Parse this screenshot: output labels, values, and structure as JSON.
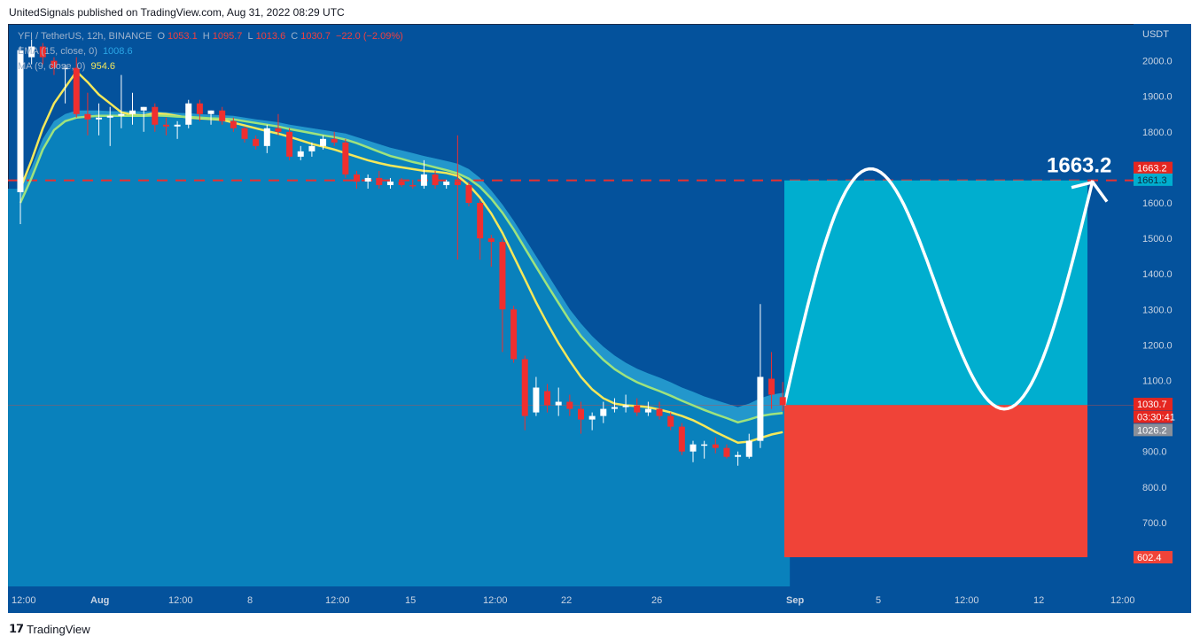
{
  "header": {
    "caption": "UnitedSignals published on TradingView.com, Aug 31, 2022 08:29 UTC"
  },
  "legend": {
    "symbol": "YFI / TetherUS, 12h, BINANCE",
    "open_label": "O",
    "open": "1053.1",
    "high_label": "H",
    "high": "1095.7",
    "low_label": "L",
    "low": "1013.6",
    "close_label": "C",
    "close": "1030.7",
    "change": "−22.0 (−2.09%)",
    "ema_label": "EMA (15, close, 0)",
    "ema_value": "1008.6",
    "ma_label": "MA (9, close, 0)",
    "ma_value": "954.6"
  },
  "footer": {
    "brand": "TradingView",
    "brand_icon": "tradingview-logo-icon"
  },
  "colors": {
    "background": "#04529c",
    "area_fill": "#0a86c0",
    "up_candle": "#ffffff",
    "down_candle": "#ef2f2f",
    "ema_line": "#9ee37d",
    "ma_line": "#f5e85a",
    "target_box": "#00aecf",
    "stop_box": "#f04338",
    "target_line": "#e83030"
  },
  "chart_data": {
    "type": "candlestick",
    "quote_currency": "USDT",
    "ylim": [
      570,
      2100
    ],
    "y_ticks": [
      700,
      800,
      900,
      1000,
      1100,
      1200,
      1300,
      1400,
      1500,
      1600,
      1700,
      1800,
      1900,
      2000
    ],
    "y_tick_labels": [
      "700.0",
      "800.0",
      "900.0",
      "1000.0",
      "1100.0",
      "1200.0",
      "1300.0",
      "1400.0",
      "1500.0",
      "1600.0",
      "1700.0",
      "1800.0",
      "1900.0",
      "2000.0"
    ],
    "x_tick_labels": [
      "12:00",
      "Aug",
      "12:00",
      "8",
      "12:00",
      "15",
      "12:00",
      "22",
      "26",
      "Sep",
      "5",
      "12:00",
      "12",
      "12:00"
    ],
    "candles": [
      {
        "o": 1630,
        "h": 2040,
        "l": 1540,
        "c": 2030
      },
      {
        "o": 2010,
        "h": 2060,
        "l": 1990,
        "c": 2040
      },
      {
        "o": 2040,
        "h": 2050,
        "l": 1990,
        "c": 2010
      },
      {
        "o": 2000,
        "h": 2010,
        "l": 1960,
        "c": 1980
      },
      {
        "o": 1980,
        "h": 1990,
        "l": 1880,
        "c": 1980
      },
      {
        "o": 1980,
        "h": 2010,
        "l": 1840,
        "c": 1850
      },
      {
        "o": 1850,
        "h": 1910,
        "l": 1790,
        "c": 1835
      },
      {
        "o": 1835,
        "h": 1880,
        "l": 1790,
        "c": 1840
      },
      {
        "o": 1840,
        "h": 1870,
        "l": 1760,
        "c": 1845
      },
      {
        "o": 1845,
        "h": 1960,
        "l": 1810,
        "c": 1850
      },
      {
        "o": 1850,
        "h": 1910,
        "l": 1820,
        "c": 1860
      },
      {
        "o": 1860,
        "h": 1870,
        "l": 1800,
        "c": 1870
      },
      {
        "o": 1870,
        "h": 1880,
        "l": 1800,
        "c": 1820
      },
      {
        "o": 1820,
        "h": 1840,
        "l": 1790,
        "c": 1815
      },
      {
        "o": 1815,
        "h": 1830,
        "l": 1780,
        "c": 1820
      },
      {
        "o": 1820,
        "h": 1890,
        "l": 1810,
        "c": 1880
      },
      {
        "o": 1880,
        "h": 1890,
        "l": 1830,
        "c": 1850
      },
      {
        "o": 1850,
        "h": 1860,
        "l": 1820,
        "c": 1860
      },
      {
        "o": 1860,
        "h": 1870,
        "l": 1820,
        "c": 1830
      },
      {
        "o": 1830,
        "h": 1840,
        "l": 1800,
        "c": 1810
      },
      {
        "o": 1810,
        "h": 1815,
        "l": 1770,
        "c": 1780
      },
      {
        "o": 1780,
        "h": 1790,
        "l": 1750,
        "c": 1760
      },
      {
        "o": 1760,
        "h": 1820,
        "l": 1740,
        "c": 1810
      },
      {
        "o": 1810,
        "h": 1850,
        "l": 1790,
        "c": 1800
      },
      {
        "o": 1800,
        "h": 1810,
        "l": 1720,
        "c": 1730
      },
      {
        "o": 1730,
        "h": 1760,
        "l": 1720,
        "c": 1745
      },
      {
        "o": 1745,
        "h": 1770,
        "l": 1730,
        "c": 1760
      },
      {
        "o": 1760,
        "h": 1790,
        "l": 1750,
        "c": 1780
      },
      {
        "o": 1780,
        "h": 1800,
        "l": 1760,
        "c": 1770
      },
      {
        "o": 1770,
        "h": 1780,
        "l": 1670,
        "c": 1680
      },
      {
        "o": 1680,
        "h": 1690,
        "l": 1640,
        "c": 1660
      },
      {
        "o": 1660,
        "h": 1680,
        "l": 1640,
        "c": 1670
      },
      {
        "o": 1670,
        "h": 1690,
        "l": 1640,
        "c": 1650
      },
      {
        "o": 1650,
        "h": 1670,
        "l": 1640,
        "c": 1660
      },
      {
        "o": 1660,
        "h": 1670,
        "l": 1645,
        "c": 1650
      },
      {
        "o": 1650,
        "h": 1665,
        "l": 1640,
        "c": 1648
      },
      {
        "o": 1648,
        "h": 1720,
        "l": 1640,
        "c": 1680
      },
      {
        "o": 1680,
        "h": 1690,
        "l": 1640,
        "c": 1650
      },
      {
        "o": 1650,
        "h": 1665,
        "l": 1640,
        "c": 1660
      },
      {
        "o": 1660,
        "h": 1790,
        "l": 1440,
        "c": 1650
      },
      {
        "o": 1650,
        "h": 1660,
        "l": 1590,
        "c": 1600
      },
      {
        "o": 1600,
        "h": 1610,
        "l": 1440,
        "c": 1500
      },
      {
        "o": 1500,
        "h": 1510,
        "l": 1420,
        "c": 1490
      },
      {
        "o": 1490,
        "h": 1500,
        "l": 1180,
        "c": 1300
      },
      {
        "o": 1300,
        "h": 1310,
        "l": 1150,
        "c": 1160
      },
      {
        "o": 1160,
        "h": 1170,
        "l": 960,
        "c": 1000
      },
      {
        "o": 1010,
        "h": 1110,
        "l": 1000,
        "c": 1080
      },
      {
        "o": 1070,
        "h": 1090,
        "l": 1010,
        "c": 1030
      },
      {
        "o": 1030,
        "h": 1080,
        "l": 1000,
        "c": 1040
      },
      {
        "o": 1040,
        "h": 1060,
        "l": 1000,
        "c": 1020
      },
      {
        "o": 1020,
        "h": 1040,
        "l": 950,
        "c": 990
      },
      {
        "o": 990,
        "h": 1010,
        "l": 960,
        "c": 1000
      },
      {
        "o": 1000,
        "h": 1040,
        "l": 980,
        "c": 1020
      },
      {
        "o": 1020,
        "h": 1050,
        "l": 1010,
        "c": 1025
      },
      {
        "o": 1025,
        "h": 1060,
        "l": 1010,
        "c": 1030
      },
      {
        "o": 1030,
        "h": 1050,
        "l": 1000,
        "c": 1010
      },
      {
        "o": 1010,
        "h": 1040,
        "l": 1000,
        "c": 1020
      },
      {
        "o": 1020,
        "h": 1040,
        "l": 990,
        "c": 1000
      },
      {
        "o": 1000,
        "h": 1010,
        "l": 960,
        "c": 970
      },
      {
        "o": 970,
        "h": 980,
        "l": 890,
        "c": 900
      },
      {
        "o": 900,
        "h": 930,
        "l": 870,
        "c": 920
      },
      {
        "o": 920,
        "h": 930,
        "l": 880,
        "c": 920
      },
      {
        "o": 920,
        "h": 940,
        "l": 895,
        "c": 910
      },
      {
        "o": 910,
        "h": 920,
        "l": 880,
        "c": 885
      },
      {
        "o": 885,
        "h": 900,
        "l": 860,
        "c": 890
      },
      {
        "o": 885,
        "h": 950,
        "l": 880,
        "c": 930
      },
      {
        "o": 930,
        "h": 1315,
        "l": 910,
        "c": 1110
      },
      {
        "o": 1105,
        "h": 1180,
        "l": 1020,
        "c": 1060
      },
      {
        "o": 1053.1,
        "h": 1095.7,
        "l": 1013.6,
        "c": 1030.7
      }
    ],
    "ma_9": [
      1640,
      1720,
      1810,
      1880,
      1925,
      1970,
      1940,
      1905,
      1880,
      1855,
      1848,
      1846,
      1852,
      1850,
      1845,
      1840,
      1838,
      1836,
      1834,
      1826,
      1818,
      1810,
      1802,
      1795,
      1786,
      1776,
      1766,
      1758,
      1750,
      1740,
      1730,
      1720,
      1712,
      1705,
      1700,
      1695,
      1690,
      1688,
      1684,
      1676,
      1650,
      1615,
      1570,
      1515,
      1450,
      1385,
      1320,
      1260,
      1205,
      1155,
      1110,
      1075,
      1050,
      1035,
      1030,
      1028,
      1025,
      1018,
      1010,
      1000,
      988,
      972,
      955,
      940,
      925,
      928,
      938,
      948,
      954.6
    ],
    "ema_band_upper": [
      1640,
      1700,
      1780,
      1830,
      1850,
      1860,
      1860,
      1860,
      1858,
      1858,
      1858,
      1857,
      1857,
      1855,
      1853,
      1852,
      1850,
      1848,
      1847,
      1845,
      1840,
      1835,
      1831,
      1827,
      1820,
      1815,
      1810,
      1805,
      1800,
      1795,
      1785,
      1775,
      1765,
      1755,
      1748,
      1740,
      1732,
      1725,
      1718,
      1710,
      1695,
      1670,
      1635,
      1595,
      1550,
      1500,
      1450,
      1400,
      1350,
      1300,
      1260,
      1225,
      1195,
      1170,
      1150,
      1133,
      1120,
      1108,
      1095,
      1080,
      1068,
      1055,
      1045,
      1035,
      1025,
      1035,
      1050,
      1060,
      1065
    ],
    "ema_15": [
      1600,
      1670,
      1750,
      1805,
      1830,
      1840,
      1843,
      1845,
      1845,
      1845,
      1845,
      1845,
      1846,
      1845,
      1843,
      1842,
      1840,
      1838,
      1837,
      1835,
      1830,
      1825,
      1820,
      1815,
      1808,
      1802,
      1796,
      1790,
      1785,
      1778,
      1768,
      1756,
      1744,
      1732,
      1724,
      1715,
      1708,
      1700,
      1692,
      1683,
      1668,
      1645,
      1612,
      1572,
      1525,
      1472,
      1420,
      1368,
      1318,
      1268,
      1225,
      1190,
      1158,
      1132,
      1112,
      1095,
      1082,
      1070,
      1057,
      1043,
      1030,
      1017,
      1005,
      994,
      982,
      990,
      1000,
      1005,
      1008.6
    ],
    "price_labels": {
      "target": "1663.2",
      "current_high_line": "1661.3",
      "last": "1030.7",
      "countdown": "03:30:41",
      "ma_price": "1026.2",
      "stop": "602.4"
    },
    "projection": {
      "entry": 1030.7,
      "target": 1663.2,
      "stop": 602.4,
      "target_annotation": "1663.2"
    }
  }
}
